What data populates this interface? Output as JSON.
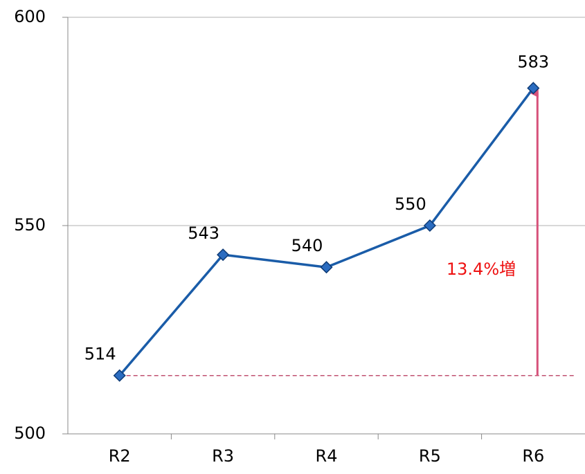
{
  "chart_data": {
    "type": "line",
    "categories": [
      "R2",
      "R3",
      "R4",
      "R5",
      "R6"
    ],
    "series": [
      {
        "color": "#1a5ca8",
        "values": [
          514,
          543,
          540,
          550,
          583
        ]
      }
    ],
    "ylim": [
      500,
      600
    ],
    "yticks": [
      500,
      550,
      600
    ],
    "grid": true,
    "annotation": "13.4%増"
  }
}
